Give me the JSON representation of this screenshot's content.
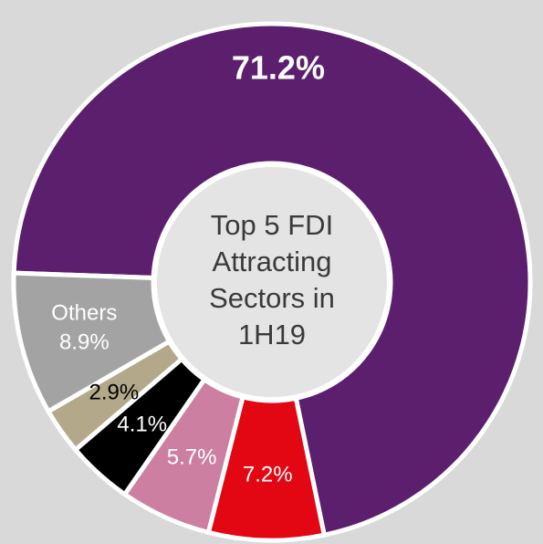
{
  "chart_data": {
    "type": "donut",
    "center_text": [
      "Top 5 FDI",
      "Attracting",
      "Sectors in",
      "1H19"
    ],
    "categories": [
      null,
      null,
      null,
      null,
      null,
      "Others"
    ],
    "values": [
      71.2,
      7.2,
      5.7,
      4.1,
      2.9,
      8.9
    ],
    "value_labels": [
      "71.2%",
      "7.2%",
      "5.7%",
      "4.1%",
      "2.9%",
      "8.9%"
    ],
    "colors": [
      "#5c1f6e",
      "#e30613",
      "#cc7fa0",
      "#000000",
      "#b3a88a",
      "#a3a3a3"
    ]
  }
}
